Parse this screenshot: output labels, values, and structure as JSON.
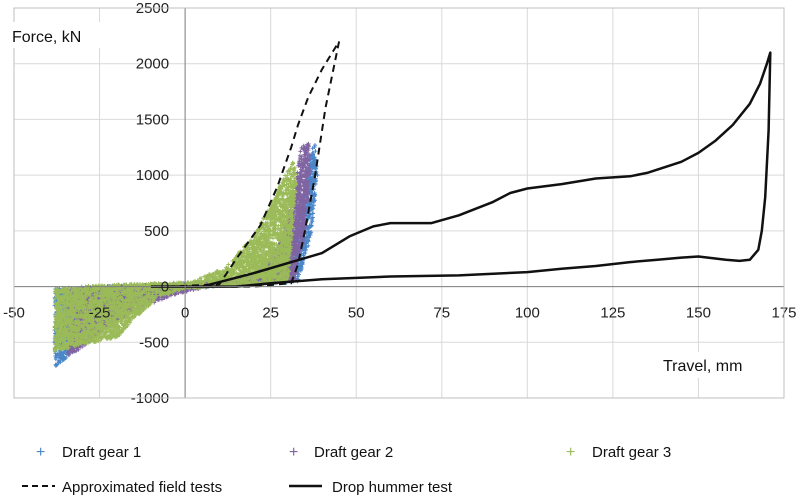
{
  "chart_data": {
    "type": "scatter",
    "xlabel": "Travel, mm",
    "ylabel": "Force, kN",
    "xlim": [
      -50,
      175
    ],
    "ylim": [
      -1000,
      2500
    ],
    "grid": true,
    "legend_position": "bottom",
    "x_ticks": [
      "-50",
      "-25",
      "0",
      "25",
      "50",
      "75",
      "100",
      "125",
      "150",
      "175"
    ],
    "y_ticks": [
      "-1000",
      "-500",
      "0",
      "500",
      "1000",
      "1500",
      "2000",
      "2500"
    ],
    "series": [
      {
        "name": "Draft gear 1",
        "kind": "markers",
        "marker": "+",
        "color": "#4a86c8",
        "envelope": {
          "upper": [
            [
              -38,
              -20
            ],
            [
              -20,
              10
            ],
            [
              5,
              30
            ],
            [
              20,
              60
            ],
            [
              30,
              250
            ],
            [
              34,
              700
            ],
            [
              36,
              1100
            ],
            [
              38,
              1300
            ],
            [
              38.5,
              1000
            ]
          ],
          "lower": [
            [
              -38,
              -720
            ],
            [
              -35,
              -650
            ],
            [
              -30,
              -450
            ],
            [
              -20,
              -220
            ],
            [
              -5,
              -40
            ],
            [
              10,
              10
            ],
            [
              25,
              25
            ],
            [
              33,
              40
            ],
            [
              37,
              500
            ],
            [
              38.5,
              1000
            ]
          ]
        }
      },
      {
        "name": "Draft gear 2",
        "kind": "markers",
        "marker": "+",
        "color": "#8064a2",
        "envelope": {
          "upper": [
            [
              -34,
              -20
            ],
            [
              -20,
              10
            ],
            [
              5,
              40
            ],
            [
              20,
              90
            ],
            [
              28,
              400
            ],
            [
              32,
              900
            ],
            [
              34,
              1250
            ],
            [
              36,
              1300
            ],
            [
              36.5,
              1000
            ]
          ],
          "lower": [
            [
              -34,
              -620
            ],
            [
              -30,
              -550
            ],
            [
              -25,
              -420
            ],
            [
              -15,
              -220
            ],
            [
              -2,
              -60
            ],
            [
              10,
              10
            ],
            [
              25,
              25
            ],
            [
              32,
              50
            ],
            [
              35,
              500
            ],
            [
              36.5,
              1000
            ]
          ]
        }
      },
      {
        "name": "Draft gear 3",
        "kind": "markers",
        "marker": "+",
        "color": "#9bbb59",
        "envelope": {
          "upper": [
            [
              -38,
              -10
            ],
            [
              -20,
              20
            ],
            [
              2,
              40
            ],
            [
              12,
              180
            ],
            [
              20,
              450
            ],
            [
              26,
              800
            ],
            [
              30,
              1050
            ],
            [
              32,
              1150
            ],
            [
              32.5,
              950
            ]
          ],
          "lower": [
            [
              -38,
              -580
            ],
            [
              -30,
              -520
            ],
            [
              -20,
              -460
            ],
            [
              -15,
              -300
            ],
            [
              -8,
              -100
            ],
            [
              0,
              -20
            ],
            [
              10,
              0
            ],
            [
              22,
              20
            ],
            [
              30,
              40
            ],
            [
              32.5,
              950
            ]
          ]
        }
      },
      {
        "name": "Approximated field tests",
        "kind": "line",
        "dash": true,
        "color": "#111111",
        "points": [
          [
            -5,
            0
          ],
          [
            10,
            20
          ],
          [
            15,
            250
          ],
          [
            22,
            550
          ],
          [
            27,
            900
          ],
          [
            31,
            1250
          ],
          [
            33,
            1450
          ],
          [
            36,
            1700
          ],
          [
            40,
            1950
          ],
          [
            45,
            2200
          ],
          [
            41,
            1600
          ],
          [
            38,
            1000
          ],
          [
            35,
            500
          ],
          [
            33,
            200
          ],
          [
            31,
            30
          ],
          [
            20,
            0
          ],
          [
            -5,
            0
          ]
        ]
      },
      {
        "name": "Drop hummer test",
        "kind": "line",
        "dash": false,
        "color": "#111111",
        "points": [
          [
            -10,
            0
          ],
          [
            5,
            0
          ],
          [
            20,
            120
          ],
          [
            40,
            300
          ],
          [
            48,
            450
          ],
          [
            55,
            540
          ],
          [
            60,
            570
          ],
          [
            72,
            570
          ],
          [
            80,
            640
          ],
          [
            90,
            760
          ],
          [
            95,
            840
          ],
          [
            100,
            880
          ],
          [
            110,
            920
          ],
          [
            120,
            970
          ],
          [
            130,
            990
          ],
          [
            135,
            1020
          ],
          [
            145,
            1120
          ],
          [
            150,
            1200
          ],
          [
            155,
            1310
          ],
          [
            160,
            1450
          ],
          [
            165,
            1640
          ],
          [
            168,
            1820
          ],
          [
            170,
            2000
          ],
          [
            171,
            2100
          ],
          [
            170.5,
            1400
          ],
          [
            169.5,
            800
          ],
          [
            168.5,
            500
          ],
          [
            167.5,
            330
          ],
          [
            165,
            240
          ],
          [
            162,
            230
          ],
          [
            158,
            240
          ],
          [
            150,
            270
          ],
          [
            145,
            260
          ],
          [
            138,
            240
          ],
          [
            130,
            220
          ],
          [
            120,
            185
          ],
          [
            110,
            160
          ],
          [
            100,
            130
          ],
          [
            80,
            100
          ],
          [
            60,
            90
          ],
          [
            40,
            65
          ],
          [
            25,
            30
          ],
          [
            15,
            0
          ],
          [
            5,
            0
          ],
          [
            -10,
            0
          ]
        ]
      }
    ]
  }
}
